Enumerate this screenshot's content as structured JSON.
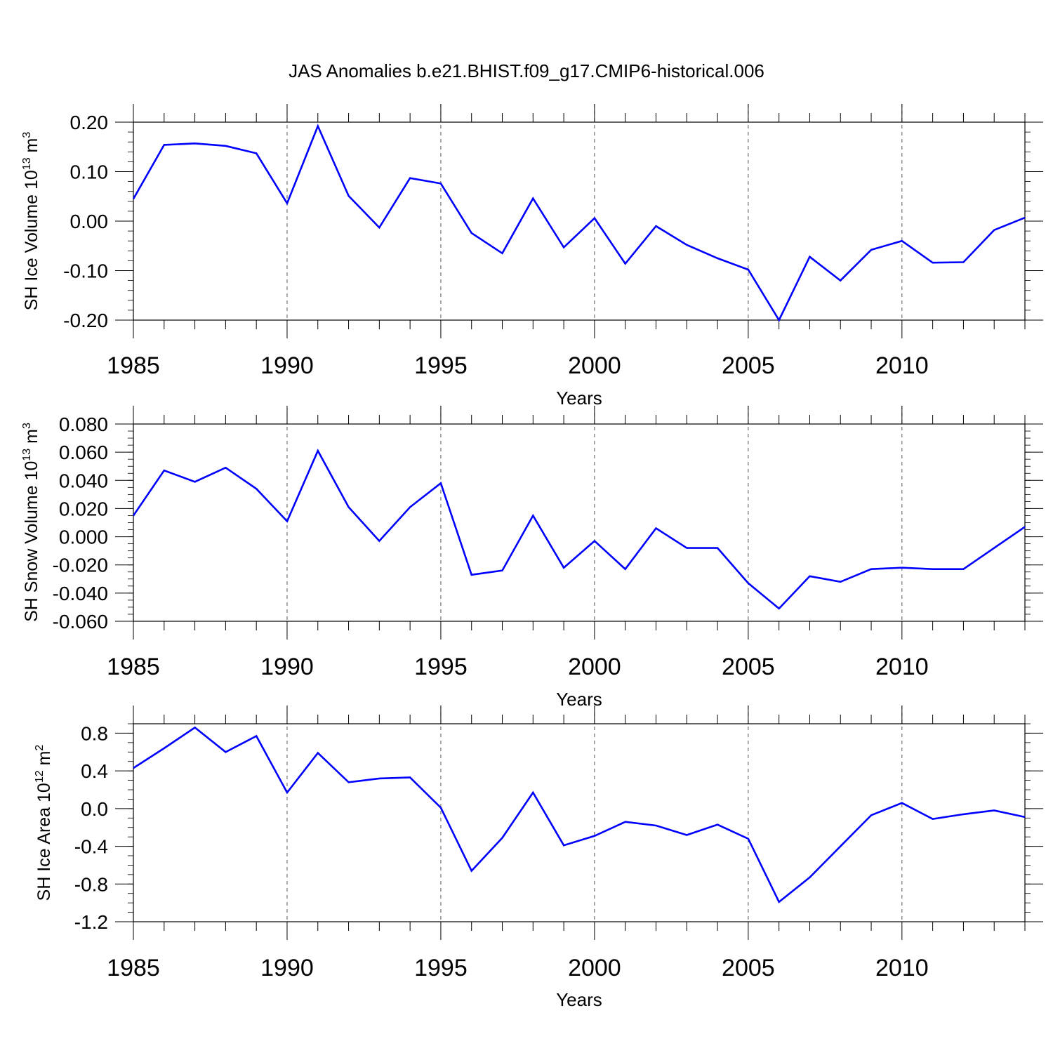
{
  "figure_title": "JAS Anomalies b.e21.BHIST.f09_g17.CMIP6-historical.006",
  "chart_data": [
    {
      "type": "line",
      "title": "",
      "xlabel": "Years",
      "ylabel_prefix": "SH Ice Volume 10",
      "ylabel_exp": "13",
      "ylabel_unit": " m",
      "ylabel_unit_exp": "3",
      "xlim": [
        1985,
        2014
      ],
      "ylim": [
        -0.2,
        0.2
      ],
      "yticks": [
        -0.2,
        -0.1,
        0.0,
        0.1,
        0.2
      ],
      "ytick_labels": [
        "-0.20",
        "-0.10",
        "0.00",
        "0.10",
        "0.20"
      ],
      "yminor_step": 0.02,
      "xticks": [
        1985,
        1990,
        1995,
        2000,
        2005,
        2010
      ],
      "xtick_labels": [
        "1985",
        "1990",
        "1995",
        "2000",
        "2005",
        "2010"
      ],
      "grid_x": true,
      "line_color": "#0000ff",
      "series": [
        {
          "name": "SH Ice Volume",
          "x": [
            1985,
            1986,
            1987,
            1988,
            1989,
            1990,
            1991,
            1992,
            1993,
            1994,
            1995,
            1996,
            1997,
            1998,
            1999,
            2000,
            2001,
            2002,
            2003,
            2004,
            2005,
            2006,
            2007,
            2008,
            2009,
            2010,
            2011,
            2012,
            2013,
            2014
          ],
          "values": [
            0.045,
            0.154,
            0.157,
            0.152,
            0.137,
            0.036,
            0.192,
            0.051,
            -0.013,
            0.087,
            0.076,
            -0.024,
            -0.065,
            0.046,
            -0.053,
            0.006,
            -0.086,
            -0.01,
            -0.048,
            -0.075,
            -0.098,
            -0.2,
            -0.072,
            -0.12,
            -0.058,
            -0.04,
            -0.084,
            -0.083,
            -0.018,
            0.007
          ]
        }
      ]
    },
    {
      "type": "line",
      "title": "",
      "xlabel": "Years",
      "ylabel_prefix": "SH Snow Volume 10",
      "ylabel_exp": "13",
      "ylabel_unit": " m",
      "ylabel_unit_exp": "3",
      "xlim": [
        1985,
        2014
      ],
      "ylim": [
        -0.06,
        0.08
      ],
      "yticks": [
        -0.06,
        -0.04,
        -0.02,
        0.0,
        0.02,
        0.04,
        0.06,
        0.08
      ],
      "ytick_labels": [
        "-0.060",
        "-0.040",
        "-0.020",
        "0.000",
        "0.020",
        "0.040",
        "0.060",
        "0.080"
      ],
      "yminor_step": 0.005,
      "xticks": [
        1985,
        1990,
        1995,
        2000,
        2005,
        2010
      ],
      "xtick_labels": [
        "1985",
        "1990",
        "1995",
        "2000",
        "2005",
        "2010"
      ],
      "grid_x": true,
      "line_color": "#0000ff",
      "series": [
        {
          "name": "SH Snow Volume",
          "x": [
            1985,
            1986,
            1987,
            1988,
            1989,
            1990,
            1991,
            1992,
            1993,
            1994,
            1995,
            1996,
            1997,
            1998,
            1999,
            2000,
            2001,
            2002,
            2003,
            2004,
            2005,
            2006,
            2007,
            2008,
            2009,
            2010,
            2011,
            2012,
            2013,
            2014
          ],
          "values": [
            0.015,
            0.047,
            0.039,
            0.049,
            0.034,
            0.011,
            0.061,
            0.021,
            -0.003,
            0.021,
            0.038,
            -0.027,
            -0.024,
            0.015,
            -0.022,
            -0.003,
            -0.023,
            0.006,
            -0.008,
            -0.008,
            -0.033,
            -0.051,
            -0.028,
            -0.032,
            -0.023,
            -0.022,
            -0.023,
            -0.023,
            -0.008,
            0.007
          ]
        }
      ]
    },
    {
      "type": "line",
      "title": "",
      "xlabel": "Years",
      "ylabel_prefix": "SH Ice Area 10",
      "ylabel_exp": "12",
      "ylabel_unit": " m",
      "ylabel_unit_exp": "2",
      "xlim": [
        1985,
        2014
      ],
      "ylim": [
        -1.2,
        0.9
      ],
      "yticks": [
        -1.2,
        -0.8,
        -0.4,
        0.0,
        0.4,
        0.8
      ],
      "ytick_labels": [
        "-1.2",
        "-0.8",
        "-0.4",
        "0.0",
        "0.4",
        "0.8"
      ],
      "yminor_step": 0.1,
      "xticks": [
        1985,
        1990,
        1995,
        2000,
        2005,
        2010
      ],
      "xtick_labels": [
        "1985",
        "1990",
        "1995",
        "2000",
        "2005",
        "2010"
      ],
      "grid_x": true,
      "line_color": "#0000ff",
      "series": [
        {
          "name": "SH Ice Area",
          "x": [
            1985,
            1986,
            1987,
            1988,
            1989,
            1990,
            1991,
            1992,
            1993,
            1994,
            1995,
            1996,
            1997,
            1998,
            1999,
            2000,
            2001,
            2002,
            2003,
            2004,
            2005,
            2006,
            2007,
            2008,
            2009,
            2010,
            2011,
            2012,
            2013,
            2014
          ],
          "values": [
            0.43,
            0.64,
            0.86,
            0.6,
            0.77,
            0.17,
            0.59,
            0.28,
            0.32,
            0.33,
            0.01,
            -0.66,
            -0.31,
            0.17,
            -0.39,
            -0.29,
            -0.14,
            -0.18,
            -0.28,
            -0.17,
            -0.32,
            -0.99,
            -0.73,
            -0.4,
            -0.07,
            0.06,
            -0.11,
            -0.06,
            -0.02,
            -0.09
          ]
        }
      ]
    }
  ]
}
